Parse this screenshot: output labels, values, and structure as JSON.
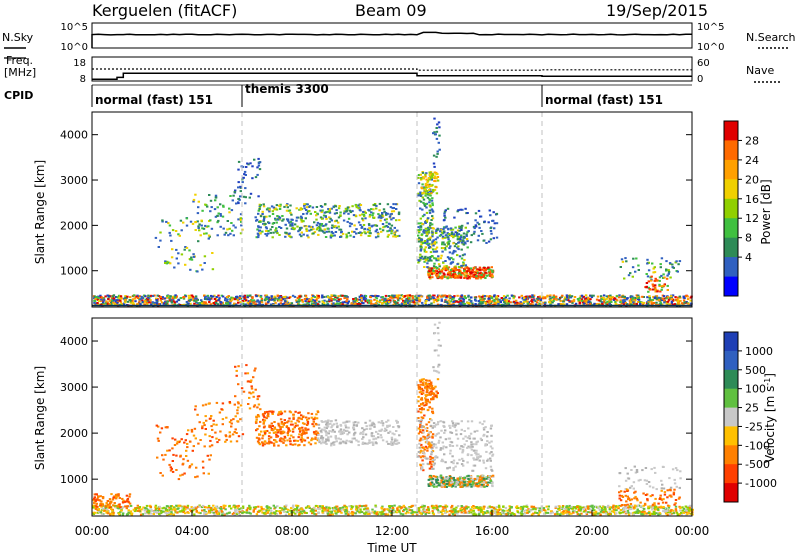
{
  "header": {
    "station": "Kerguelen (fitACF)",
    "beam": "Beam 09",
    "date": "19/Sep/2015"
  },
  "noise_panel": {
    "left_label": "N.Sky",
    "right_label": "N.Search",
    "left_ticks": [
      "10^5",
      "10^0"
    ],
    "right_ticks": [
      "10^5",
      "10^0"
    ]
  },
  "freq_panel": {
    "left_label_line1": "Freq.",
    "left_label_line2": "[MHz]",
    "right_label": "Nave",
    "left_ticks": [
      "18",
      "8"
    ],
    "right_ticks": [
      "60",
      "0"
    ]
  },
  "cpid": {
    "label": "CPID",
    "segments": [
      {
        "label": "normal (fast) 151",
        "start_h": 0
      },
      {
        "label": "themis 3300",
        "start_h": 6
      },
      {
        "label": "normal (fast) 151",
        "start_h": 18
      }
    ]
  },
  "chart_data": [
    {
      "type": "heatmap",
      "name": "power",
      "ylabel": "Slant Range [km]",
      "colorbar_label": "Power [dB]",
      "colorbar_ticks": [
        "28",
        "24",
        "20",
        "16",
        "12",
        "8",
        "4"
      ],
      "colorbar_colors": [
        "#e00000",
        "#ff6a00",
        "#ffa000",
        "#f0d000",
        "#90d000",
        "#40c040",
        "#2e8b57",
        "#3060c0",
        "#0000ff"
      ],
      "x_range_h": [
        0,
        24
      ],
      "y_range_km": [
        200,
        4500
      ],
      "yticks": [
        1000,
        2000,
        3000,
        4000
      ],
      "dashed_lines_h": [
        6,
        13,
        18
      ]
    },
    {
      "type": "heatmap",
      "name": "velocity",
      "ylabel": "Slant Range [km]",
      "colorbar_label": "Velocity [m s-1]",
      "colorbar_ticks": [
        "1000",
        "500",
        "100",
        "25",
        "-25",
        "-100",
        "-500",
        "-1000"
      ],
      "colorbar_colors": [
        "#1f3fb5",
        "#3060c0",
        "#2e8b57",
        "#60c040",
        "#c8c8c8",
        "#ffc000",
        "#ff8000",
        "#ff4000",
        "#e00000"
      ],
      "x_range_h": [
        0,
        24
      ],
      "y_range_km": [
        200,
        4500
      ],
      "yticks": [
        1000,
        2000,
        3000,
        4000
      ],
      "xticks": [
        "00:00",
        "04:00",
        "08:00",
        "12:00",
        "16:00",
        "20:00",
        "00:00"
      ],
      "xlabel": "Time UT",
      "dashed_lines_h": [
        6,
        13,
        18
      ]
    }
  ]
}
